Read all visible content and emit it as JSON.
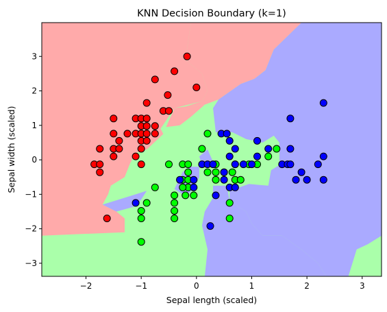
{
  "chart_data": {
    "type": "scatter",
    "title": "KNN Decision Boundary (k=1)",
    "xlabel": "Sepal length (scaled)",
    "ylabel": "Sepal width (scaled)",
    "xlim": [
      -2.8,
      3.35
    ],
    "ylim": [
      -3.38,
      3.98
    ],
    "xticks": [
      -2,
      -1,
      0,
      1,
      2,
      3
    ],
    "yticks": [
      -3,
      -2,
      -1,
      0,
      1,
      2,
      3
    ],
    "grid": false,
    "colors": {
      "region_red": "#FFAAAA",
      "region_green": "#AAFFAA",
      "region_blue": "#AAAAFF",
      "point_red": "#FF0000",
      "point_green": "#00FF00",
      "point_blue": "#0000FF",
      "edge": "#000000"
    },
    "decision_regions": [
      {
        "class": "red",
        "polygon": [
          [
            -2.8,
            3.98
          ],
          [
            -0.1,
            3.98
          ],
          [
            -0.2,
            2.9
          ],
          [
            0.1,
            2.5
          ],
          [
            0.2,
            2.0
          ],
          [
            0.1,
            1.7
          ],
          [
            -0.4,
            1.5
          ],
          [
            -0.65,
            0.9
          ],
          [
            -0.6,
            0.75
          ],
          [
            -0.9,
            0.3
          ],
          [
            -1.1,
            0.2
          ],
          [
            -1.2,
            -0.1
          ],
          [
            -1.3,
            -0.5
          ],
          [
            -1.55,
            -0.75
          ],
          [
            -1.6,
            -1.0
          ],
          [
            -1.7,
            -1.3
          ],
          [
            -1.45,
            -1.5
          ],
          [
            -1.3,
            -1.7
          ],
          [
            -1.3,
            -2.1
          ],
          [
            -2.8,
            -2.2
          ]
        ]
      },
      {
        "class": "red",
        "polygon": [
          [
            -0.1,
            3.98
          ],
          [
            1.9,
            3.98
          ],
          [
            1.4,
            3.2
          ],
          [
            1.25,
            2.6
          ],
          [
            1.05,
            2.35
          ],
          [
            0.8,
            2.2
          ],
          [
            0.4,
            1.75
          ],
          [
            0.15,
            1.6
          ],
          [
            -0.2,
            1.55
          ],
          [
            0.1,
            1.7
          ],
          [
            0.2,
            2.0
          ],
          [
            0.1,
            2.5
          ],
          [
            -0.2,
            2.9
          ]
        ]
      },
      {
        "class": "red",
        "polygon": [
          [
            -0.2,
            1.55
          ],
          [
            0.15,
            1.6
          ],
          [
            -0.1,
            1.25
          ],
          [
            -0.3,
            1.0
          ],
          [
            -0.55,
            0.95
          ],
          [
            -0.4,
            1.5
          ]
        ]
      },
      {
        "class": "blue",
        "polygon": [
          [
            1.9,
            3.98
          ],
          [
            3.35,
            3.98
          ],
          [
            3.35,
            -2.2
          ],
          [
            3.1,
            -2.45
          ],
          [
            2.9,
            -2.6
          ],
          [
            2.75,
            -3.38
          ],
          [
            2.35,
            -3.38
          ],
          [
            2.2,
            -3.0
          ],
          [
            1.9,
            -2.6
          ],
          [
            1.55,
            -2.2
          ],
          [
            1.2,
            -2.2
          ],
          [
            1.0,
            -1.85
          ],
          [
            0.9,
            -1.5
          ],
          [
            0.6,
            -1.2
          ],
          [
            0.6,
            -0.9
          ],
          [
            0.95,
            -0.7
          ],
          [
            1.3,
            -0.75
          ],
          [
            1.35,
            -0.3
          ],
          [
            1.5,
            -0.15
          ],
          [
            1.5,
            0.15
          ],
          [
            1.5,
            0.5
          ],
          [
            1.4,
            0.7
          ],
          [
            1.2,
            0.5
          ],
          [
            0.9,
            0.6
          ],
          [
            0.65,
            0.8
          ],
          [
            0.35,
            0.8
          ],
          [
            0.3,
            1.5
          ],
          [
            0.4,
            1.75
          ],
          [
            0.8,
            2.2
          ],
          [
            1.05,
            2.35
          ],
          [
            1.25,
            2.6
          ],
          [
            1.4,
            3.2
          ]
        ]
      },
      {
        "class": "blue",
        "polygon": [
          [
            0.3,
            -0.75
          ],
          [
            0.55,
            -0.75
          ],
          [
            0.6,
            -1.2
          ],
          [
            0.9,
            -1.5
          ],
          [
            1.0,
            -1.85
          ],
          [
            1.2,
            -2.2
          ],
          [
            1.55,
            -2.2
          ],
          [
            1.9,
            -2.6
          ],
          [
            2.2,
            -3.0
          ],
          [
            2.35,
            -3.38
          ],
          [
            0.15,
            -3.38
          ],
          [
            0.2,
            -2.6
          ],
          [
            0.1,
            -1.9
          ],
          [
            0.15,
            -1.5
          ],
          [
            0.3,
            -1.1
          ]
        ]
      },
      {
        "class": "blue",
        "polygon": [
          [
            -1.7,
            -1.3
          ],
          [
            -1.1,
            -1.0
          ],
          [
            -0.9,
            -0.9
          ],
          [
            -1.0,
            -1.15
          ],
          [
            -1.1,
            -1.35
          ],
          [
            -1.45,
            -1.5
          ]
        ]
      },
      {
        "class": "blue",
        "polygon": [
          [
            -0.4,
            -0.85
          ],
          [
            -0.25,
            -0.35
          ],
          [
            -0.1,
            -0.2
          ],
          [
            0.05,
            -0.2
          ],
          [
            0.05,
            -0.5
          ],
          [
            -0.05,
            -0.85
          ],
          [
            -0.2,
            -1.05
          ]
        ]
      },
      {
        "class": "blue",
        "polygon": [
          [
            0.05,
            0.1
          ],
          [
            0.2,
            0.3
          ],
          [
            0.3,
            -0.05
          ],
          [
            0.1,
            -0.15
          ]
        ]
      }
    ],
    "series": [
      {
        "class": "red",
        "points": [
          [
            -0.17,
            3.0
          ],
          [
            0.0,
            2.1
          ],
          [
            -0.4,
            2.57
          ],
          [
            -0.75,
            2.33
          ],
          [
            -0.52,
            1.88
          ],
          [
            -0.9,
            1.65
          ],
          [
            -0.6,
            1.42
          ],
          [
            -0.5,
            1.42
          ],
          [
            -1.5,
            1.2
          ],
          [
            -1.1,
            1.2
          ],
          [
            -1.0,
            1.2
          ],
          [
            -0.9,
            1.2
          ],
          [
            -1.0,
            0.98
          ],
          [
            -0.9,
            0.98
          ],
          [
            -0.75,
            0.98
          ],
          [
            -1.5,
            0.76
          ],
          [
            -1.25,
            0.76
          ],
          [
            -1.1,
            0.76
          ],
          [
            -1.0,
            0.76
          ],
          [
            -0.9,
            0.76
          ],
          [
            -0.75,
            0.76
          ],
          [
            -1.4,
            0.55
          ],
          [
            -1.0,
            0.55
          ],
          [
            -0.9,
            0.55
          ],
          [
            -1.75,
            0.32
          ],
          [
            -1.5,
            0.32
          ],
          [
            -1.4,
            0.32
          ],
          [
            -1.0,
            0.32
          ],
          [
            -1.5,
            0.1
          ],
          [
            -1.1,
            0.1
          ],
          [
            -1.85,
            -0.13
          ],
          [
            -1.75,
            -0.13
          ],
          [
            -1.0,
            -0.13
          ],
          [
            -1.75,
            -0.36
          ],
          [
            -1.62,
            -1.7
          ]
        ]
      },
      {
        "class": "green",
        "points": [
          [
            -1.0,
            -2.38
          ],
          [
            -1.0,
            -1.7
          ],
          [
            -1.0,
            -1.48
          ],
          [
            -0.9,
            -1.25
          ],
          [
            -0.4,
            -1.7
          ],
          [
            -0.4,
            -1.48
          ],
          [
            -0.4,
            -1.25
          ],
          [
            -0.4,
            -1.03
          ],
          [
            -0.2,
            -1.03
          ],
          [
            -0.05,
            -1.03
          ],
          [
            -0.75,
            -0.8
          ],
          [
            -0.15,
            -0.8
          ],
          [
            -0.25,
            -0.8
          ],
          [
            -0.25,
            -0.58
          ],
          [
            -0.15,
            -0.58
          ],
          [
            -0.15,
            -0.36
          ],
          [
            -0.5,
            -0.13
          ],
          [
            -0.25,
            -0.13
          ],
          [
            -0.15,
            -0.13
          ],
          [
            0.2,
            -0.36
          ],
          [
            0.35,
            -0.36
          ],
          [
            0.35,
            -0.58
          ],
          [
            0.5,
            -0.36
          ],
          [
            0.65,
            -0.36
          ],
          [
            0.35,
            -0.13
          ],
          [
            0.7,
            -0.13
          ],
          [
            0.95,
            -0.13
          ],
          [
            1.1,
            -0.13
          ],
          [
            0.7,
            -0.58
          ],
          [
            0.8,
            -0.58
          ],
          [
            1.3,
            0.1
          ],
          [
            1.45,
            0.32
          ],
          [
            0.1,
            0.32
          ],
          [
            0.2,
            0.76
          ],
          [
            0.6,
            -1.25
          ],
          [
            0.6,
            -1.7
          ]
        ]
      },
      {
        "class": "blue",
        "points": [
          [
            2.3,
            1.65
          ],
          [
            1.7,
            1.2
          ],
          [
            0.45,
            0.76
          ],
          [
            0.55,
            0.76
          ],
          [
            0.6,
            0.55
          ],
          [
            1.1,
            0.55
          ],
          [
            0.7,
            0.32
          ],
          [
            1.3,
            0.32
          ],
          [
            1.7,
            0.32
          ],
          [
            0.6,
            0.1
          ],
          [
            1.1,
            0.1
          ],
          [
            2.3,
            0.1
          ],
          [
            0.1,
            -0.13
          ],
          [
            0.2,
            -0.13
          ],
          [
            0.3,
            -0.13
          ],
          [
            0.7,
            -0.13
          ],
          [
            0.85,
            -0.13
          ],
          [
            1.0,
            -0.13
          ],
          [
            1.55,
            -0.13
          ],
          [
            1.65,
            -0.13
          ],
          [
            1.7,
            -0.13
          ],
          [
            2.2,
            -0.13
          ],
          [
            0.5,
            -0.36
          ],
          [
            1.9,
            -0.36
          ],
          [
            1.8,
            -0.58
          ],
          [
            2.0,
            -0.58
          ],
          [
            2.3,
            -0.58
          ],
          [
            -0.3,
            -0.58
          ],
          [
            -0.05,
            -0.58
          ],
          [
            0.5,
            -0.58
          ],
          [
            -0.05,
            -0.8
          ],
          [
            0.6,
            -0.8
          ],
          [
            0.7,
            -0.8
          ],
          [
            0.35,
            -1.03
          ],
          [
            -1.1,
            -1.25
          ],
          [
            0.25,
            -1.92
          ]
        ]
      }
    ]
  }
}
